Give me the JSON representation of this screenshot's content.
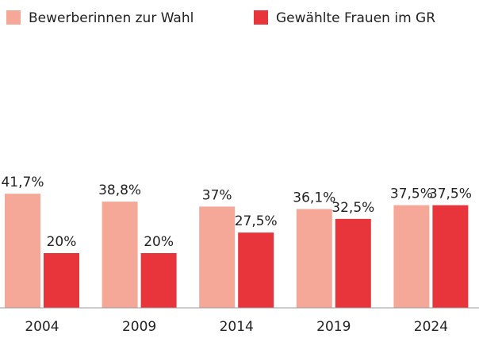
{
  "chart_data": {
    "type": "bar",
    "categories": [
      "2004",
      "2009",
      "2014",
      "2019",
      "2024"
    ],
    "series": [
      {
        "name": "Bewerberinnen zur Wahl",
        "color": "#f5a898",
        "values": [
          41.7,
          38.8,
          37,
          36.1,
          37.5
        ],
        "value_labels": [
          "41,7%",
          "38,8%",
          "37%",
          "36,1%",
          "37,5%"
        ]
      },
      {
        "name": "Gewählte Frauen im GR",
        "color": "#e8343b",
        "values": [
          20,
          20,
          27.5,
          32.5,
          37.5
        ],
        "value_labels": [
          "20%",
          "20%",
          "27,5%",
          "32,5%",
          "37,5%"
        ]
      }
    ],
    "legend": "top-left"
  }
}
